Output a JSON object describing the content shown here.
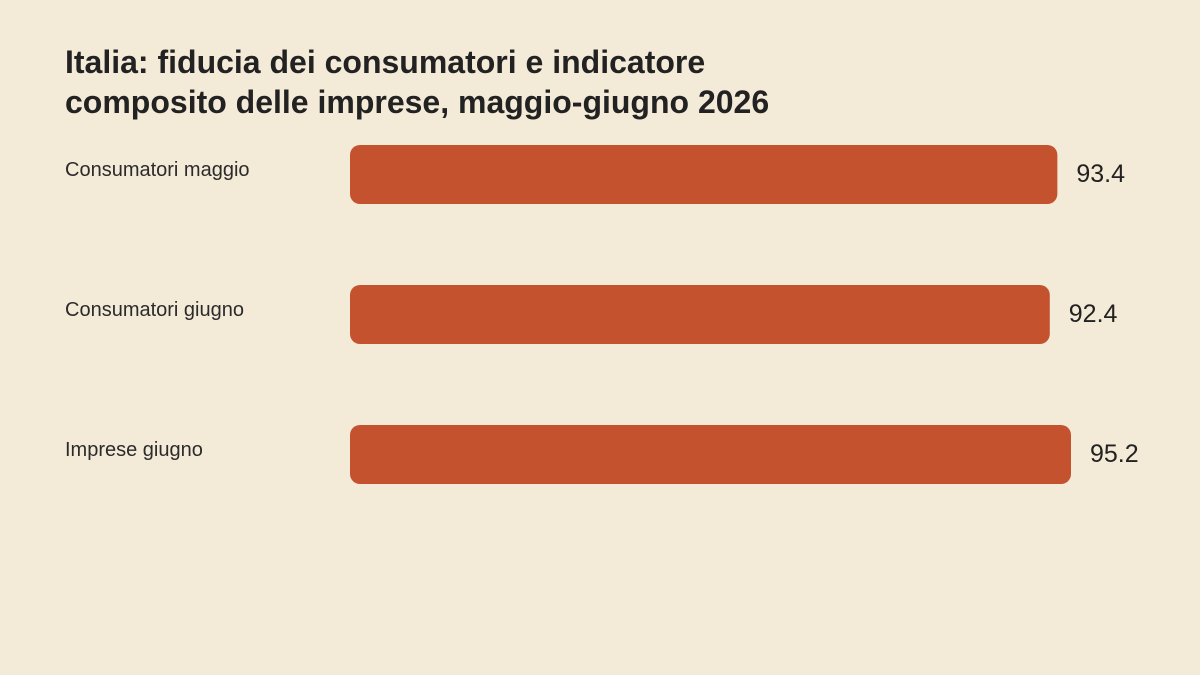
{
  "chart_data": {
    "type": "bar",
    "orientation": "horizontal",
    "title": "Italia: fiducia dei consumatori e indicatore composito delle imprese, maggio-giugno 2026",
    "title_lines": [
      "Italia: fiducia dei consumatori e indicatore",
      "composito delle imprese, maggio-giugno 2026"
    ],
    "categories": [
      "Consumatori maggio",
      "Consumatori giugno",
      "Imprese giugno"
    ],
    "values": [
      93.4,
      92.4,
      95.2
    ],
    "value_labels": [
      "93.4",
      "92.4",
      "95.2"
    ],
    "xlabel": "",
    "ylabel": "",
    "xlim": [
      0,
      95.2
    ],
    "grid": false,
    "legend": "none",
    "bar_color": "#c4522e",
    "background_color": "#f4ead8",
    "text_color": "#222222"
  }
}
